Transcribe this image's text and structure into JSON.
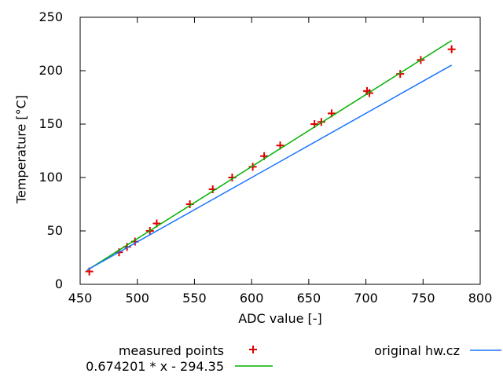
{
  "chart_data": {
    "type": "scatter",
    "title": "",
    "xlabel": "ADC value [-]",
    "ylabel": "Temperature [°C]",
    "xlim": [
      450,
      800
    ],
    "ylim": [
      0,
      250
    ],
    "xticks": [
      450,
      500,
      550,
      600,
      650,
      700,
      750,
      800
    ],
    "yticks": [
      0,
      50,
      100,
      150,
      200,
      250
    ],
    "grid": false,
    "legend_position": "below-plot",
    "series": [
      {
        "name": "measured points",
        "render": "points",
        "marker": "plus",
        "color": "#e00000",
        "points": [
          [
            458,
            12
          ],
          [
            484,
            30
          ],
          [
            491,
            35
          ],
          [
            498,
            40
          ],
          [
            511,
            50
          ],
          [
            517,
            57
          ],
          [
            546,
            75
          ],
          [
            566,
            89
          ],
          [
            583,
            100
          ],
          [
            601,
            110
          ],
          [
            611,
            120
          ],
          [
            625,
            130
          ],
          [
            655,
            150
          ],
          [
            661,
            152
          ],
          [
            670,
            160
          ],
          [
            701,
            181
          ],
          [
            703,
            179
          ],
          [
            730,
            197
          ],
          [
            748,
            210
          ],
          [
            775,
            220
          ]
        ]
      },
      {
        "name": "0.674201 * x - 294.35",
        "render": "line",
        "color": "#00b000",
        "points": [
          [
            456,
            13.1
          ],
          [
            775,
            228.2
          ]
        ]
      },
      {
        "name": "original hw.cz",
        "render": "line",
        "color": "#1a75ff",
        "points": [
          [
            456,
            13.3
          ],
          [
            775,
            205.2
          ]
        ]
      }
    ]
  },
  "legend": {
    "measured_label": "measured points",
    "fit_label": "0.674201 * x - 294.35",
    "original_label": "original hw.cz"
  }
}
